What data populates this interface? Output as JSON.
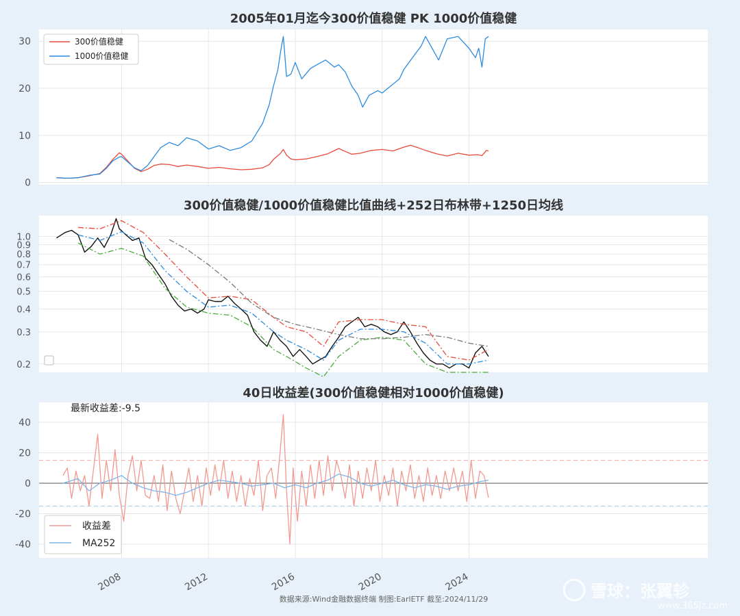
{
  "chart_data": [
    {
      "type": "line",
      "title": "2005年01月迄今300价值稳健 PK 1000价值稳健",
      "ylim": [
        -0.5,
        32.5
      ],
      "yticks": [
        0,
        10,
        20,
        30
      ],
      "xlim": [
        2004.2,
        2035.0
      ],
      "grid": true,
      "legend_position": "top-left",
      "series": [
        {
          "name": "300价值稳健",
          "color": "#e8483a",
          "x": [
            2005.0,
            2005.5,
            2006.0,
            2006.5,
            2007.0,
            2007.3,
            2007.6,
            2007.9,
            2008.0,
            2008.3,
            2008.6,
            2008.9,
            2009.2,
            2009.5,
            2009.8,
            2010.2,
            2010.6,
            2011.0,
            2011.5,
            2012.0,
            2012.5,
            2013.0,
            2013.5,
            2014.0,
            2014.5,
            2014.8,
            2015.0,
            2015.3,
            2015.45,
            2015.6,
            2015.8,
            2016.0,
            2016.5,
            2017.0,
            2017.5,
            2018.0,
            2018.3,
            2018.6,
            2019.0,
            2019.5,
            2020.0,
            2020.5,
            2021.0,
            2021.3,
            2021.7,
            2022.0,
            2022.5,
            2023.0,
            2023.5,
            2024.0,
            2024.4,
            2024.6,
            2024.8,
            2024.9
          ],
          "y": [
            1.0,
            0.9,
            1.0,
            1.4,
            1.9,
            3.2,
            4.9,
            6.3,
            6.0,
            4.5,
            3.0,
            2.3,
            2.8,
            3.6,
            3.9,
            3.8,
            3.4,
            3.7,
            3.4,
            3.0,
            3.2,
            2.9,
            2.7,
            2.8,
            3.1,
            3.8,
            4.9,
            6.1,
            7.0,
            5.8,
            5.0,
            4.8,
            5.0,
            5.5,
            6.1,
            7.2,
            6.6,
            6.0,
            6.2,
            6.8,
            7.0,
            6.7,
            7.5,
            7.9,
            7.3,
            6.8,
            6.1,
            5.6,
            6.2,
            5.8,
            5.9,
            5.7,
            6.8,
            6.7
          ]
        },
        {
          "name": "1000价值稳健",
          "color": "#2b8be0",
          "x": [
            2005.0,
            2005.5,
            2006.0,
            2006.5,
            2007.0,
            2007.3,
            2007.6,
            2007.9,
            2008.0,
            2008.3,
            2008.6,
            2008.9,
            2009.2,
            2009.5,
            2009.8,
            2010.2,
            2010.6,
            2011.0,
            2011.5,
            2012.0,
            2012.5,
            2013.0,
            2013.5,
            2014.0,
            2014.5,
            2014.8,
            2015.0,
            2015.2,
            2015.35,
            2015.45,
            2015.6,
            2015.8,
            2016.0,
            2016.3,
            2016.7,
            2017.0,
            2017.4,
            2017.8,
            2018.0,
            2018.3,
            2018.6,
            2018.9,
            2019.1,
            2019.4,
            2019.8,
            2020.0,
            2020.4,
            2020.8,
            2021.0,
            2021.4,
            2021.8,
            2022.0,
            2022.3,
            2022.6,
            2023.0,
            2023.5,
            2024.0,
            2024.3,
            2024.45,
            2024.6,
            2024.75,
            2024.9
          ],
          "y": [
            1.0,
            0.9,
            1.0,
            1.5,
            1.8,
            3.0,
            4.6,
            5.4,
            5.5,
            4.3,
            3.1,
            2.5,
            3.6,
            5.5,
            7.4,
            8.5,
            7.8,
            9.5,
            8.8,
            7.1,
            7.8,
            6.8,
            7.4,
            8.8,
            12.6,
            16.5,
            20.5,
            24.0,
            28.5,
            31.0,
            22.5,
            23.0,
            25.5,
            22.0,
            24.2,
            25.0,
            26.0,
            24.5,
            25.0,
            23.5,
            20.5,
            18.5,
            16.0,
            18.5,
            19.5,
            19.0,
            20.5,
            22.0,
            24.0,
            26.5,
            29.0,
            31.0,
            28.5,
            26.0,
            30.5,
            31.0,
            28.5,
            26.5,
            28.5,
            24.5,
            30.5,
            31.0
          ]
        }
      ]
    },
    {
      "type": "line",
      "title": "300价值稳健/1000价值稳健比值曲线+252日布林带+1250日均线",
      "yscale": "log",
      "ylim": [
        0.18,
        1.3
      ],
      "yticks": [
        0.2,
        0.3,
        0.4,
        0.5,
        0.6,
        0.7,
        0.8,
        0.9,
        1.0
      ],
      "ytick_labels": [
        "0.2",
        "0.3",
        "0.4",
        "0.5",
        "0.6",
        "0.7",
        "0.8",
        "0.9",
        "1.0"
      ],
      "xlim": [
        2004.2,
        2035.0
      ],
      "grid": true,
      "series": [
        {
          "color": "#111111",
          "width": 1.4,
          "x": [
            2005.0,
            2005.4,
            2005.7,
            2006.0,
            2006.3,
            2006.6,
            2006.9,
            2007.2,
            2007.5,
            2007.75,
            2007.9,
            2008.2,
            2008.5,
            2008.8,
            2009.1,
            2009.4,
            2009.7,
            2010.0,
            2010.3,
            2010.6,
            2010.9,
            2011.2,
            2011.5,
            2011.8,
            2012.0,
            2012.3,
            2012.6,
            2012.9,
            2013.2,
            2013.5,
            2013.8,
            2014.1,
            2014.4,
            2014.7,
            2015.0,
            2015.3,
            2015.6,
            2015.9,
            2016.2,
            2016.5,
            2016.8,
            2017.1,
            2017.4,
            2017.7,
            2018.0,
            2018.3,
            2018.6,
            2018.9,
            2019.2,
            2019.5,
            2019.8,
            2020.1,
            2020.4,
            2020.7,
            2021.0,
            2021.3,
            2021.6,
            2021.9,
            2022.2,
            2022.5,
            2022.8,
            2023.1,
            2023.4,
            2023.7,
            2024.0,
            2024.3,
            2024.6,
            2024.9
          ],
          "y": [
            0.98,
            1.05,
            1.08,
            1.02,
            0.82,
            0.88,
            0.98,
            0.87,
            1.02,
            1.25,
            1.1,
            1.02,
            0.95,
            0.98,
            0.76,
            0.7,
            0.62,
            0.55,
            0.47,
            0.42,
            0.39,
            0.4,
            0.38,
            0.4,
            0.45,
            0.44,
            0.44,
            0.47,
            0.43,
            0.4,
            0.37,
            0.3,
            0.27,
            0.25,
            0.3,
            0.27,
            0.25,
            0.22,
            0.24,
            0.22,
            0.2,
            0.21,
            0.22,
            0.25,
            0.28,
            0.32,
            0.34,
            0.36,
            0.32,
            0.33,
            0.32,
            0.3,
            0.29,
            0.3,
            0.34,
            0.3,
            0.26,
            0.23,
            0.21,
            0.2,
            0.2,
            0.19,
            0.2,
            0.2,
            0.19,
            0.23,
            0.25,
            0.22
          ]
        },
        {
          "color": "#e8483a",
          "dash": "8,3,2,3",
          "x": [
            2006.0,
            2007.0,
            2008.0,
            2009.0,
            2010.0,
            2011.0,
            2012.0,
            2013.0,
            2014.0,
            2015.0,
            2015.6,
            2016.5,
            2017.3,
            2018.0,
            2019.0,
            2020.0,
            2021.0,
            2022.0,
            2023.0,
            2024.0,
            2024.9
          ],
          "y": [
            1.12,
            1.1,
            1.22,
            1.05,
            0.8,
            0.6,
            0.46,
            0.47,
            0.45,
            0.36,
            0.32,
            0.3,
            0.25,
            0.34,
            0.35,
            0.35,
            0.33,
            0.32,
            0.22,
            0.21,
            0.24
          ]
        },
        {
          "color": "#2b8be0",
          "dash": "8,3,2,3",
          "x": [
            2006.0,
            2007.0,
            2008.0,
            2009.0,
            2010.0,
            2011.0,
            2012.0,
            2013.0,
            2014.0,
            2015.0,
            2015.6,
            2016.5,
            2017.3,
            2018.0,
            2019.0,
            2020.0,
            2021.0,
            2022.0,
            2023.0,
            2024.0,
            2024.9
          ],
          "y": [
            1.02,
            0.95,
            1.06,
            0.92,
            0.65,
            0.5,
            0.41,
            0.42,
            0.38,
            0.3,
            0.27,
            0.24,
            0.21,
            0.27,
            0.31,
            0.31,
            0.3,
            0.26,
            0.2,
            0.2,
            0.21
          ]
        },
        {
          "color": "#4aab3c",
          "dash": "8,3,2,3",
          "x": [
            2006.0,
            2007.0,
            2008.0,
            2009.0,
            2010.0,
            2011.0,
            2012.0,
            2013.0,
            2014.0,
            2015.0,
            2015.6,
            2016.5,
            2017.3,
            2018.0,
            2019.0,
            2020.0,
            2021.0,
            2022.0,
            2023.0,
            2024.0,
            2024.9
          ],
          "y": [
            0.92,
            0.8,
            0.86,
            0.78,
            0.52,
            0.41,
            0.38,
            0.37,
            0.32,
            0.24,
            0.22,
            0.19,
            0.17,
            0.22,
            0.27,
            0.28,
            0.27,
            0.2,
            0.18,
            0.18,
            0.18
          ]
        },
        {
          "color": "#777777",
          "dash": "8,3,2,3",
          "x": [
            2010.2,
            2011.0,
            2012.0,
            2013.0,
            2014.0,
            2015.0,
            2016.0,
            2017.0,
            2018.0,
            2019.0,
            2020.0,
            2021.0,
            2022.0,
            2023.0,
            2024.0,
            2024.9
          ],
          "y": [
            0.96,
            0.85,
            0.7,
            0.56,
            0.43,
            0.36,
            0.33,
            0.31,
            0.29,
            0.275,
            0.275,
            0.28,
            0.29,
            0.28,
            0.26,
            0.25
          ]
        }
      ]
    },
    {
      "type": "line",
      "title": "40日收益差(300价值稳健相对1000价值稳健)",
      "annotation": "最新收益差:-9.5",
      "ylim": [
        -49,
        53
      ],
      "yticks": [
        -40,
        -20,
        0,
        20,
        40
      ],
      "xlim": [
        2004.2,
        2035.0
      ],
      "xticks": [
        2008,
        2012,
        2016,
        2020,
        2024
      ],
      "hlines": [
        {
          "y": 0,
          "color": "#555555"
        },
        {
          "y": 15,
          "color": "#f4a8a8",
          "dash": "6,4"
        },
        {
          "y": -15,
          "color": "#9cc9ea",
          "dash": "6,4"
        }
      ],
      "grid": true,
      "legend_position": "bottom-left",
      "series": [
        {
          "name": "收益差",
          "color": "#f19890",
          "x": [
            2005.3,
            2005.5,
            2005.7,
            2005.9,
            2006.1,
            2006.3,
            2006.5,
            2006.7,
            2006.9,
            2007.1,
            2007.3,
            2007.5,
            2007.7,
            2007.9,
            2008.1,
            2008.3,
            2008.5,
            2008.7,
            2008.9,
            2009.1,
            2009.3,
            2009.5,
            2009.7,
            2009.9,
            2010.1,
            2010.3,
            2010.5,
            2010.7,
            2010.9,
            2011.1,
            2011.3,
            2011.5,
            2011.7,
            2011.9,
            2012.1,
            2012.3,
            2012.5,
            2012.7,
            2012.9,
            2013.1,
            2013.3,
            2013.5,
            2013.7,
            2013.9,
            2014.1,
            2014.3,
            2014.5,
            2014.7,
            2014.9,
            2015.1,
            2015.3,
            2015.45,
            2015.6,
            2015.75,
            2015.9,
            2016.1,
            2016.3,
            2016.5,
            2016.7,
            2016.9,
            2017.1,
            2017.3,
            2017.5,
            2017.7,
            2017.9,
            2018.1,
            2018.3,
            2018.5,
            2018.7,
            2018.9,
            2019.1,
            2019.3,
            2019.5,
            2019.7,
            2019.9,
            2020.1,
            2020.3,
            2020.5,
            2020.7,
            2020.9,
            2021.1,
            2021.3,
            2021.5,
            2021.7,
            2021.9,
            2022.1,
            2022.3,
            2022.5,
            2022.7,
            2022.9,
            2023.1,
            2023.3,
            2023.5,
            2023.7,
            2023.9,
            2024.1,
            2024.3,
            2024.5,
            2024.7,
            2024.9
          ],
          "y": [
            5,
            10,
            -10,
            8,
            -5,
            5,
            -15,
            8,
            32,
            -10,
            15,
            -5,
            22,
            -8,
            -25,
            5,
            18,
            -5,
            15,
            -8,
            -10,
            5,
            -12,
            12,
            -18,
            8,
            -10,
            -20,
            -5,
            10,
            -12,
            5,
            -15,
            10,
            -8,
            12,
            -5,
            15,
            -10,
            8,
            -12,
            5,
            -15,
            3,
            -8,
            15,
            -18,
            5,
            10,
            -10,
            20,
            45,
            -5,
            -40,
            10,
            -25,
            8,
            -15,
            12,
            -10,
            15,
            -8,
            18,
            -5,
            15,
            5,
            -10,
            12,
            -15,
            8,
            -10,
            10,
            -5,
            15,
            -12,
            5,
            -8,
            10,
            -15,
            8,
            -5,
            12,
            -10,
            5,
            -12,
            10,
            -8,
            5,
            -10,
            8,
            -5,
            10,
            -5,
            8,
            -12,
            15,
            -10,
            8,
            5,
            -9.5
          ]
        },
        {
          "name": "MA252",
          "color": "#7fb6e6",
          "x": [
            2005.3,
            2006.0,
            2006.5,
            2007.0,
            2007.5,
            2008.0,
            2008.5,
            2009.0,
            2009.5,
            2010.0,
            2010.5,
            2011.0,
            2011.5,
            2012.0,
            2012.5,
            2013.0,
            2013.5,
            2014.0,
            2014.5,
            2015.0,
            2015.5,
            2016.0,
            2016.5,
            2017.0,
            2017.5,
            2018.0,
            2018.5,
            2019.0,
            2019.5,
            2020.0,
            2020.5,
            2021.0,
            2021.5,
            2022.0,
            2022.5,
            2023.0,
            2023.5,
            2024.0,
            2024.5,
            2024.9
          ],
          "y": [
            0,
            3,
            -5,
            0,
            2,
            5,
            0,
            -3,
            -5,
            -6,
            -8,
            -6,
            -3,
            0,
            2,
            1,
            0,
            -2,
            -1,
            0,
            -3,
            -1,
            -3,
            0,
            2,
            6,
            4,
            0,
            -2,
            0,
            2,
            -1,
            -3,
            -1,
            -2,
            -4,
            -2,
            -1,
            1,
            2
          ]
        }
      ]
    }
  ],
  "xtick_labels": [
    "2008",
    "2012",
    "2016",
    "2020",
    "2024"
  ],
  "footer": "数据来源:Wind金融数据终端  制图:EarlETF 截至:2024/11/29",
  "watermark": "雪球：张翼轸",
  "watermark_url": "www.365jz.com"
}
